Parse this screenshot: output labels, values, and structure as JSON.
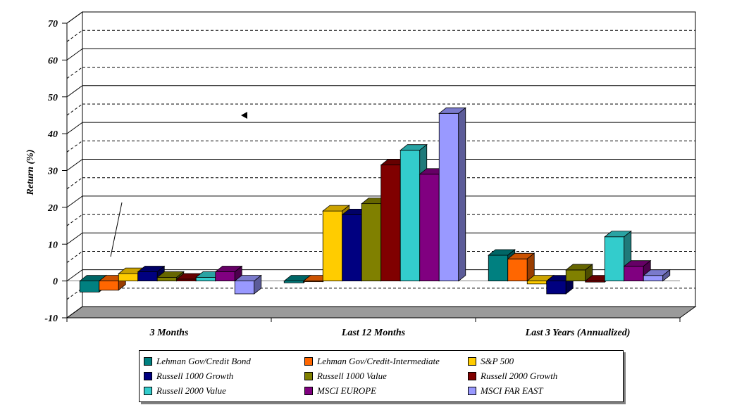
{
  "chart_data": {
    "type": "bar",
    "ylabel": "Return (%)",
    "ylim": [
      -10,
      70
    ],
    "yticks": [
      "70",
      "60",
      "50",
      "40",
      "30",
      "20",
      "10",
      "0",
      "-10"
    ],
    "categories": [
      "3 Months",
      "Last 12 Months",
      "Last 3 Years (Annualized)"
    ],
    "series": [
      {
        "name": "Lehman Gov/Credit Bond",
        "color": "#008080",
        "values": [
          -3.0,
          -0.5,
          7.0
        ]
      },
      {
        "name": "Lehman Gov/Credit-Intermediate",
        "color": "#FF6600",
        "values": [
          -2.5,
          0.0,
          6.0
        ]
      },
      {
        "name": "S&P 500",
        "color": "#FFCC00",
        "values": [
          2.0,
          19.0,
          -0.8
        ]
      },
      {
        "name": "Russell 1000 Growth",
        "color": "#000080",
        "values": [
          2.5,
          18.0,
          -3.5
        ]
      },
      {
        "name": "Russell 1000 Value",
        "color": "#808000",
        "values": [
          1.0,
          21.0,
          3.0
        ]
      },
      {
        "name": "Russell 2000 Growth",
        "color": "#800000",
        "values": [
          0.5,
          31.5,
          -0.3
        ]
      },
      {
        "name": "Russell 2000 Value",
        "color": "#33CCCC",
        "values": [
          1.0,
          35.5,
          12.0
        ]
      },
      {
        "name": "MSCI EUROPE",
        "color": "#800080",
        "values": [
          2.5,
          29.0,
          4.0
        ]
      },
      {
        "name": "MSCI FAR EAST",
        "color": "#9999FF",
        "values": [
          -3.5,
          45.5,
          1.5
        ]
      }
    ],
    "grid": true,
    "legend_position": "bottom"
  }
}
